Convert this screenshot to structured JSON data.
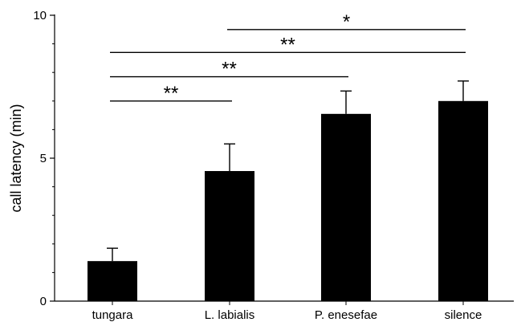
{
  "chart_data": {
    "type": "bar",
    "title": "",
    "xlabel": "",
    "ylabel": "call latency (min)",
    "ylim": [
      0,
      10
    ],
    "yticks": [
      0,
      5,
      10
    ],
    "minor_yticks": [
      1,
      2,
      3,
      4,
      6,
      7,
      8,
      9
    ],
    "grid": false,
    "categories": [
      "tungara",
      "L. labialis",
      "P. enesefae",
      "silence"
    ],
    "values": [
      1.4,
      4.55,
      6.55,
      7.0
    ],
    "error_bars": [
      0.45,
      0.95,
      0.8,
      0.7
    ],
    "bar_color": "#000000",
    "significance": [
      {
        "from": 0,
        "to": 1,
        "label": "**",
        "y": 7.0
      },
      {
        "from": 0,
        "to": 2,
        "label": "**",
        "y": 7.85
      },
      {
        "from": 0,
        "to": 3,
        "label": "**",
        "y": 8.7
      },
      {
        "from": 1,
        "to": 3,
        "label": "*",
        "y": 9.5
      }
    ]
  }
}
